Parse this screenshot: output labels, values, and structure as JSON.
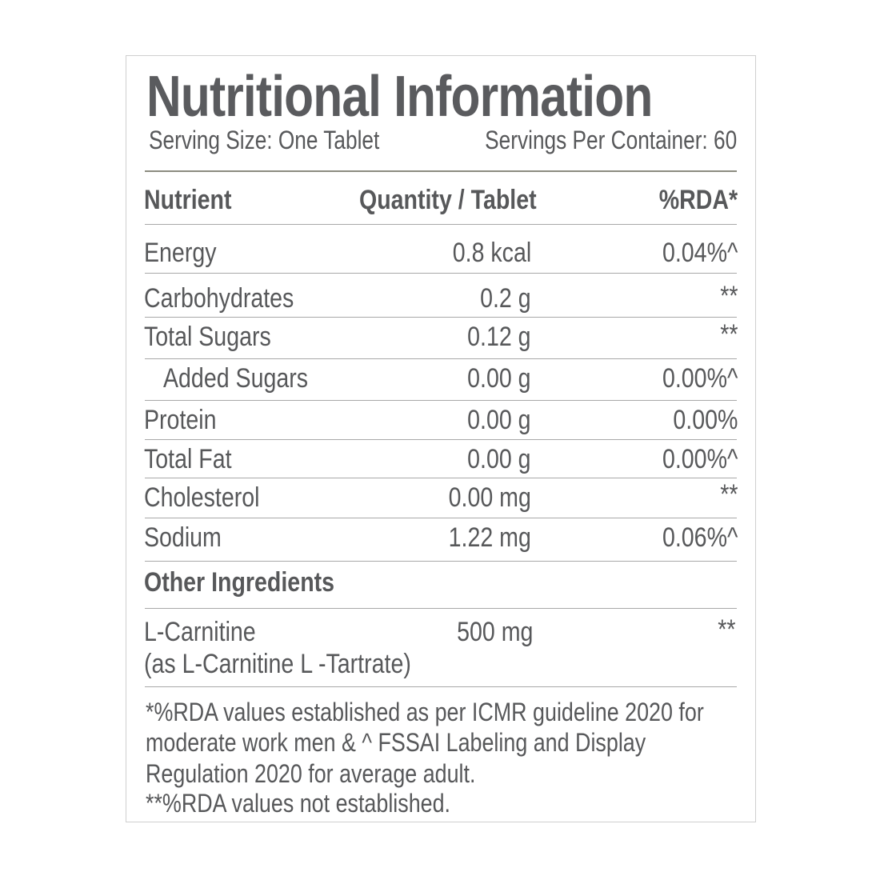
{
  "title": "Nutritional Information",
  "serving_size": "Serving Size: One Tablet",
  "servings_per_container": "Servings Per Container: 60",
  "table": {
    "headers": {
      "nutrient": "Nutrient",
      "quantity": "Quantity / Tablet",
      "rda": "%RDA*"
    },
    "rows": [
      {
        "nutrient": "Energy",
        "quantity": "0.8 kcal",
        "rda": "0.04%^"
      },
      {
        "nutrient": "Carbohydrates",
        "quantity": "0.2 g",
        "rda": "**"
      },
      {
        "nutrient": "Total Sugars",
        "quantity": "0.12 g",
        "rda": "**"
      },
      {
        "nutrient": "Added Sugars",
        "quantity": "0.00 g",
        "rda": "0.00%^"
      },
      {
        "nutrient": "Protein",
        "quantity": "0.00 g",
        "rda": "0.00%"
      },
      {
        "nutrient": "Total Fat",
        "quantity": "0.00 g",
        "rda": "0.00%^"
      },
      {
        "nutrient": "Cholesterol",
        "quantity": "0.00 mg",
        "rda": "**"
      },
      {
        "nutrient": "Sodium",
        "quantity": "1.22 mg",
        "rda": "0.06%^"
      }
    ]
  },
  "other_ingredients": {
    "heading": "Other Ingredients",
    "items": [
      {
        "name": "L-Carnitine",
        "detail": "(as L-Carnitine L -Tartrate)",
        "quantity": "500 mg",
        "rda": "**"
      }
    ]
  },
  "footnotes": [
    "*%RDA values established as per ICMR guideline 2020 for",
    "moderate work men & ^ FSSAI Labeling and Display",
    "Regulation 2020 for average adult.",
    "**%RDA values not established."
  ]
}
